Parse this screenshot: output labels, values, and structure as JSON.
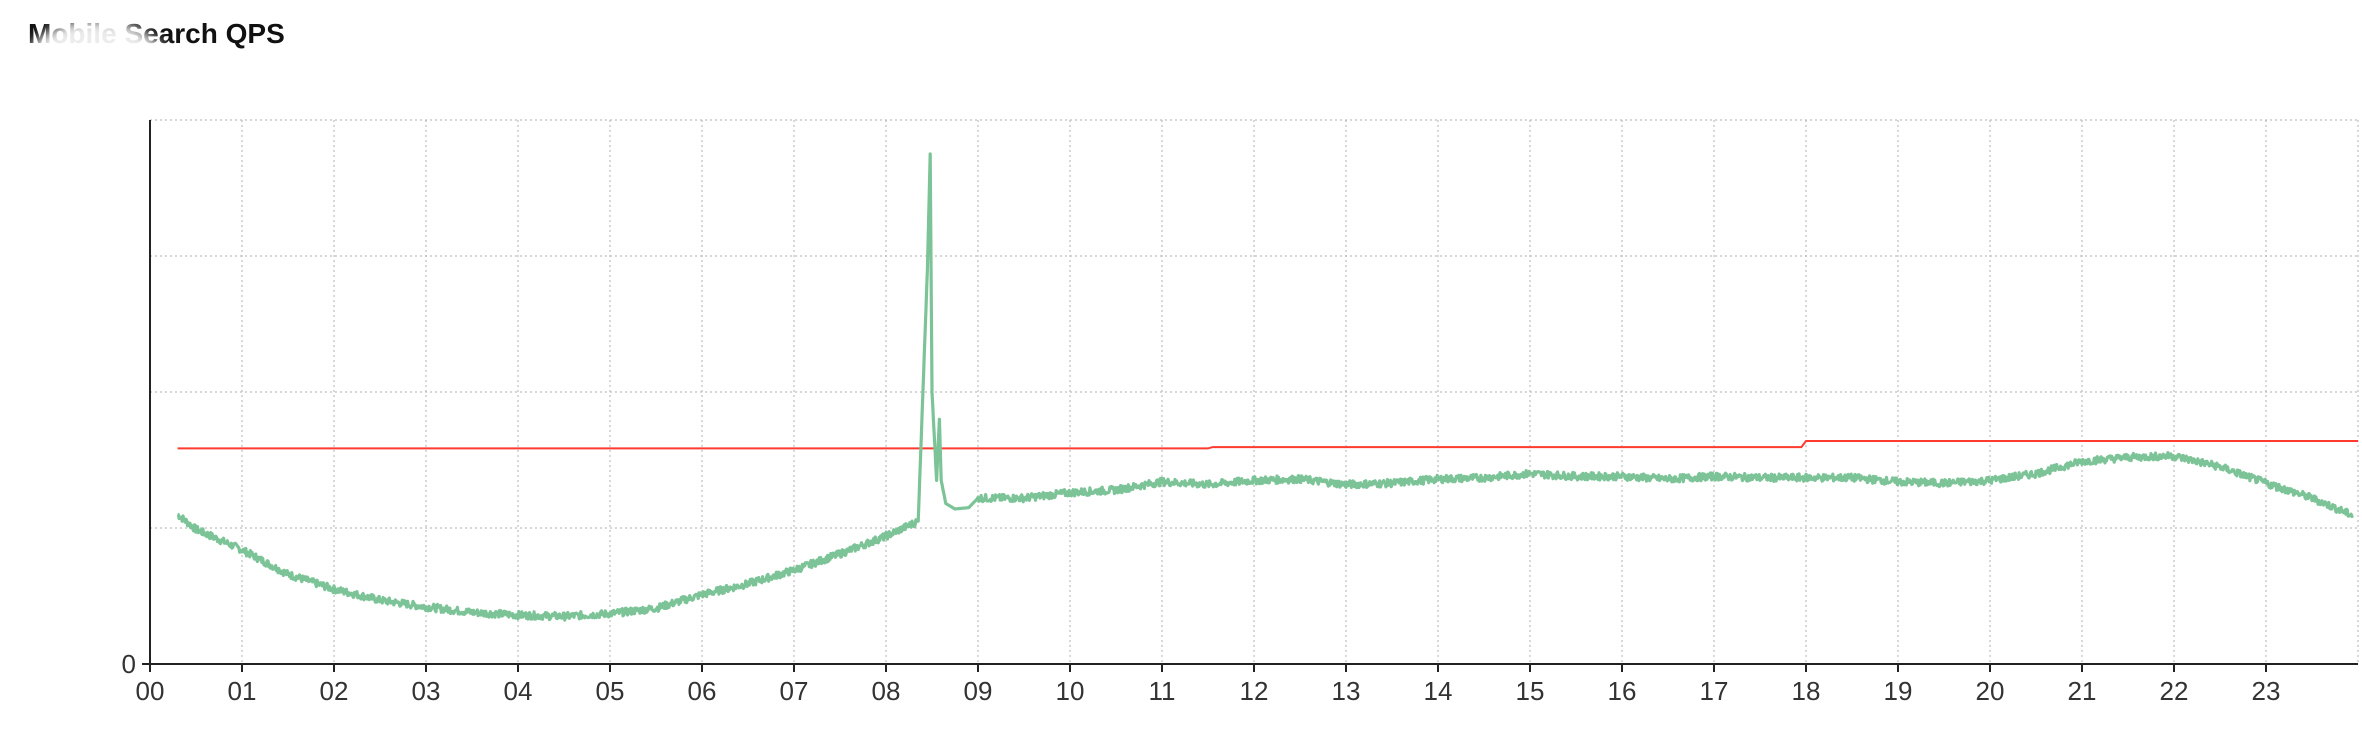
{
  "page": {
    "title": "Mobile Search QPS"
  },
  "chart_data": {
    "type": "line",
    "title": "Mobile Search QPS",
    "xlabel": "",
    "ylabel": "",
    "x_tick_labels": [
      "00",
      "01",
      "02",
      "03",
      "04",
      "05",
      "06",
      "07",
      "08",
      "09",
      "10",
      "11",
      "12",
      "13",
      "14",
      "15",
      "16",
      "17",
      "18",
      "19",
      "20",
      "21",
      "22",
      "23"
    ],
    "y_tick_labels": [
      "0"
    ],
    "y_tick_labels_obscured": true,
    "xlim": [
      0,
      24
    ],
    "ylim": [
      0,
      4
    ],
    "grid": true,
    "legend_position": "bottom-center",
    "series": [
      {
        "name": "",
        "color": "#ff3b30",
        "style": "step",
        "x": [
          0.3,
          11.5,
          11.55,
          17.95,
          18.0,
          24.0
        ],
        "values": [
          1.585,
          1.585,
          1.595,
          1.595,
          1.64,
          1.64
        ]
      },
      {
        "name": "",
        "color": "#7cc497",
        "style": "noisy-line",
        "x": [
          0.3,
          0.5,
          1.0,
          1.5,
          2.0,
          2.5,
          3.0,
          3.5,
          4.0,
          4.5,
          5.0,
          5.5,
          6.0,
          6.5,
          7.0,
          7.5,
          8.0,
          8.35,
          8.45,
          8.48,
          8.5,
          8.55,
          8.58,
          8.6,
          8.65,
          8.75,
          8.9,
          9.0,
          9.5,
          10.0,
          10.5,
          11.0,
          11.5,
          12.0,
          12.5,
          13.0,
          13.5,
          14.0,
          14.5,
          15.0,
          15.5,
          16.0,
          16.5,
          17.0,
          17.5,
          18.0,
          18.5,
          19.0,
          19.5,
          20.0,
          20.5,
          21.0,
          21.5,
          22.0,
          22.5,
          23.0,
          23.5,
          23.95
        ],
        "values": [
          1.1,
          0.99,
          0.84,
          0.66,
          0.55,
          0.47,
          0.42,
          0.38,
          0.36,
          0.35,
          0.37,
          0.41,
          0.51,
          0.59,
          0.69,
          0.81,
          0.94,
          1.05,
          2.9,
          3.75,
          2.0,
          1.35,
          1.8,
          1.35,
          1.18,
          1.14,
          1.15,
          1.22,
          1.22,
          1.26,
          1.28,
          1.34,
          1.32,
          1.35,
          1.36,
          1.32,
          1.33,
          1.36,
          1.37,
          1.4,
          1.38,
          1.38,
          1.36,
          1.38,
          1.37,
          1.37,
          1.37,
          1.34,
          1.33,
          1.35,
          1.4,
          1.49,
          1.52,
          1.53,
          1.45,
          1.33,
          1.22,
          1.09
        ]
      }
    ]
  }
}
